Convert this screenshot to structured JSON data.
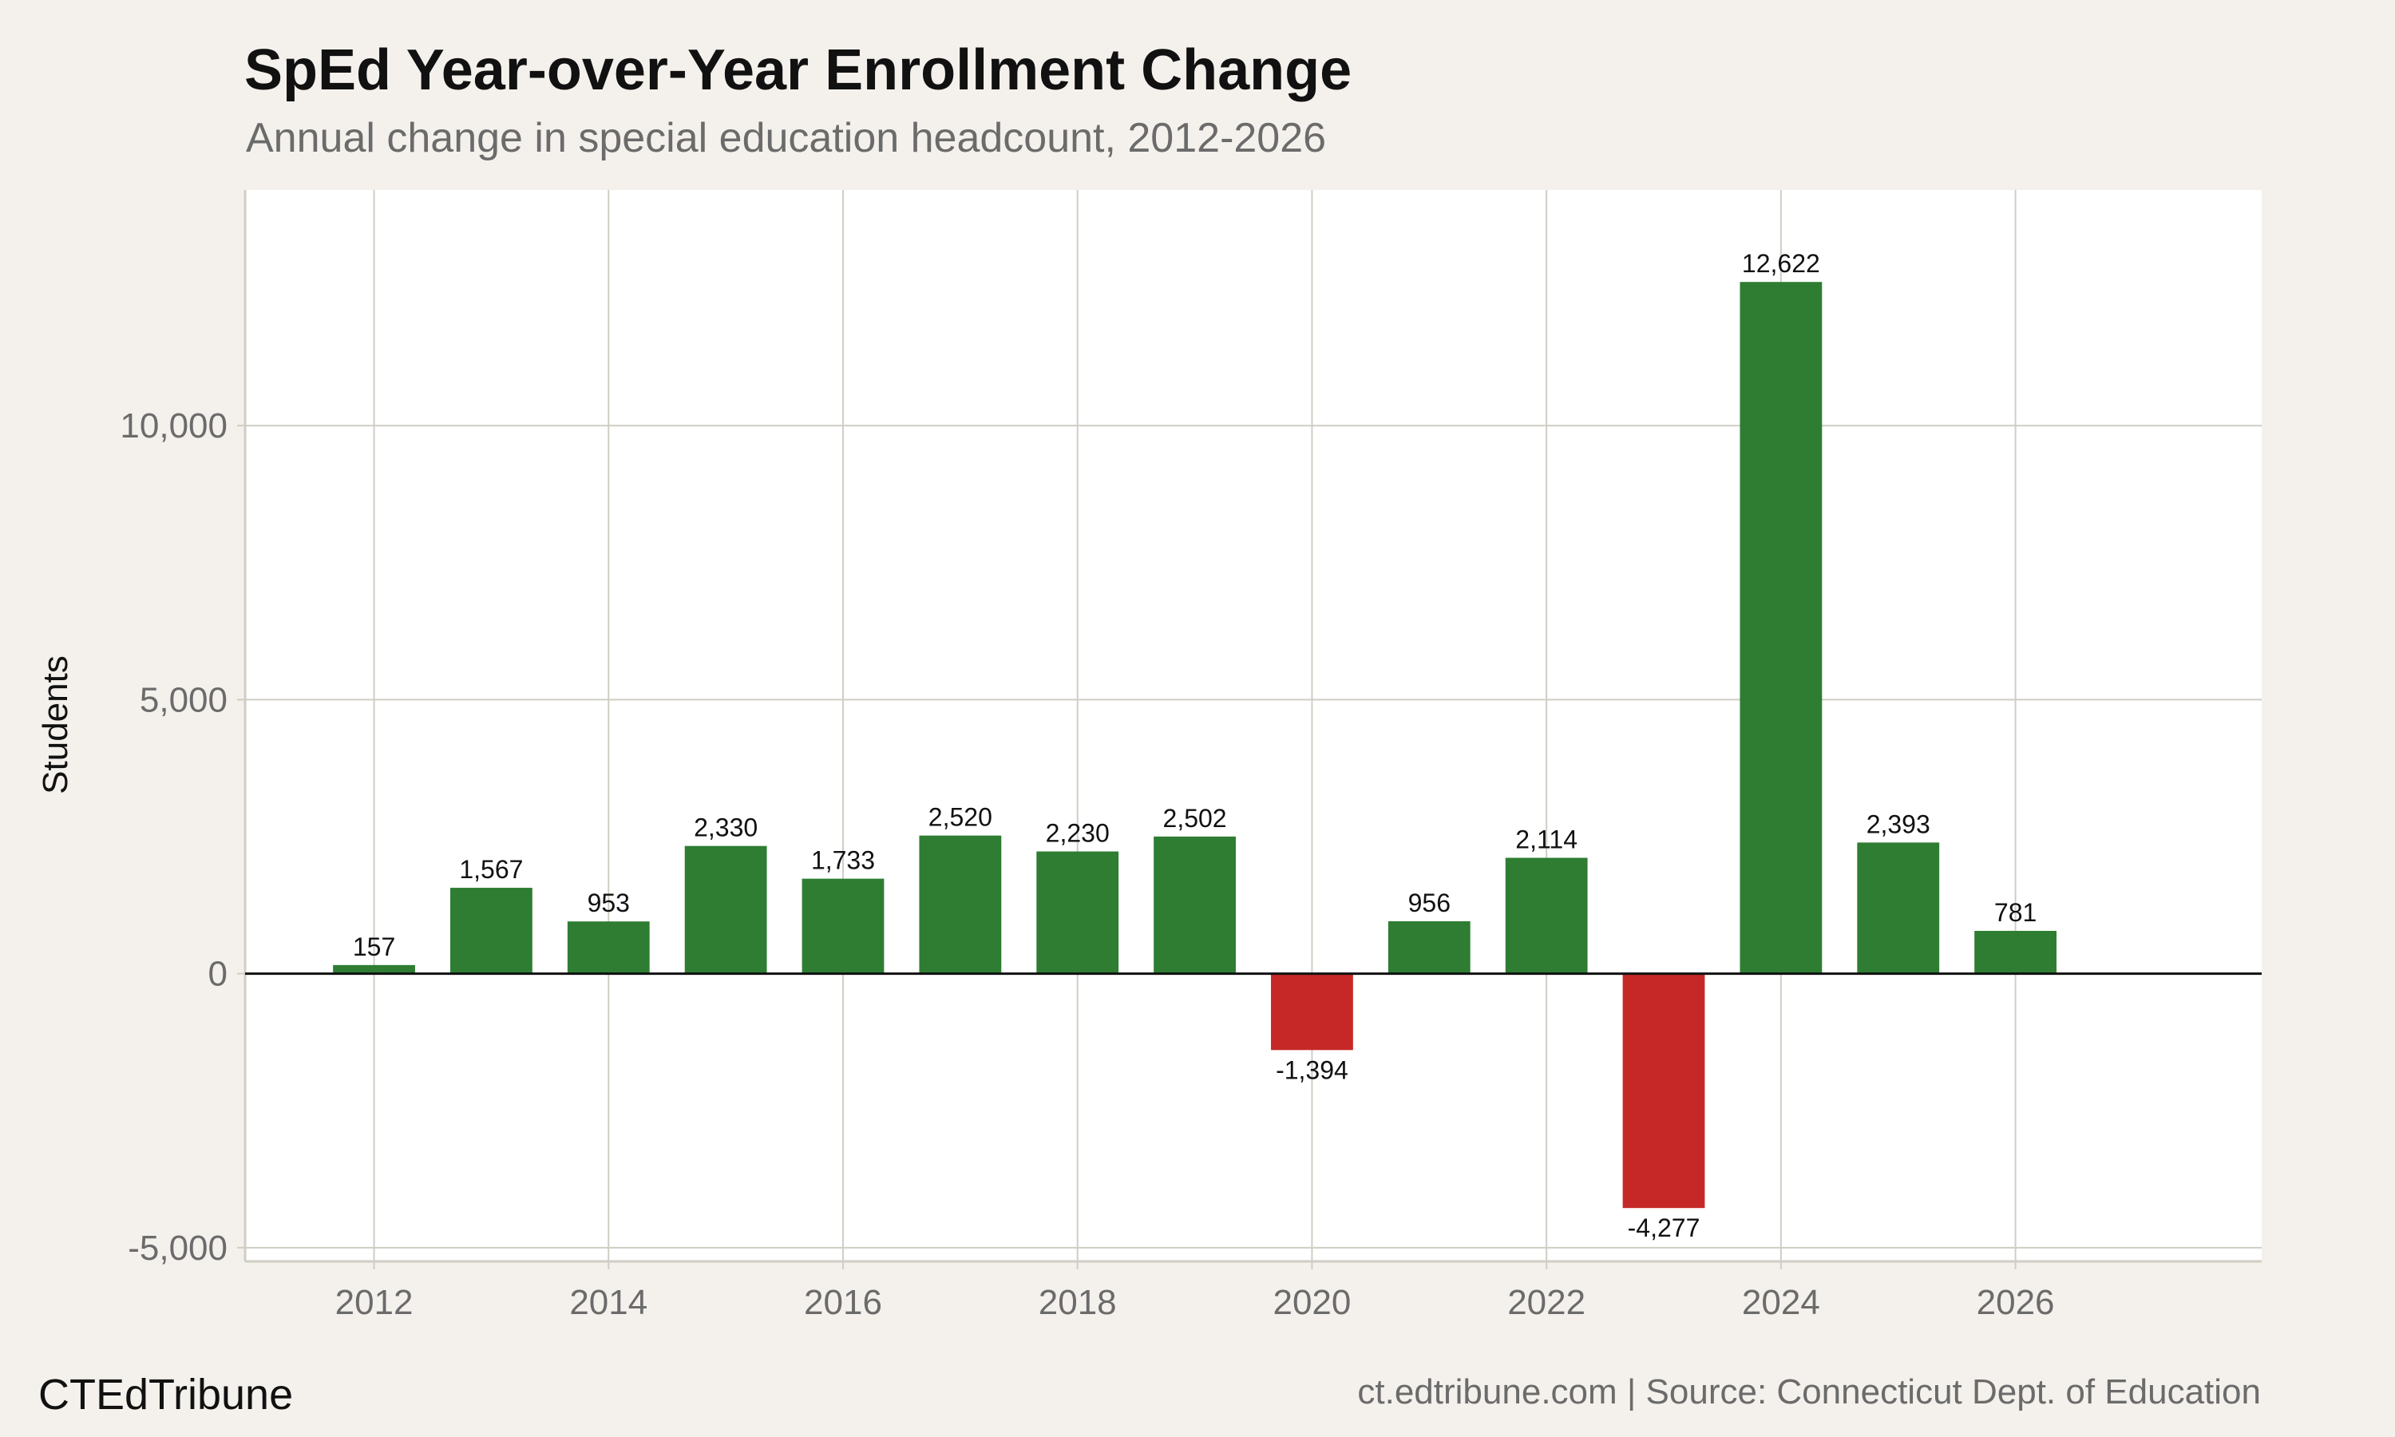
{
  "chart_data": {
    "type": "bar",
    "title": "SpEd Year-over-Year Enrollment Change",
    "subtitle": "Annual change in special education headcount, 2012-2026",
    "xlabel": "",
    "ylabel": "Students",
    "categories": [
      2012,
      2013,
      2014,
      2015,
      2016,
      2017,
      2018,
      2019,
      2020,
      2021,
      2022,
      2023,
      2024,
      2025,
      2026
    ],
    "values": [
      157,
      1567,
      953,
      2330,
      1733,
      2520,
      2230,
      2502,
      -1394,
      956,
      2114,
      -4277,
      12622,
      2393,
      781
    ],
    "data_labels": [
      "157",
      "1,567",
      "953",
      "2,330",
      "1,733",
      "2,520",
      "2,230",
      "2,502",
      "-1,394",
      "956",
      "2,114",
      "-4,277",
      "12,622",
      "2,393",
      "781"
    ],
    "xlim": [
      2010.9,
      2028.1
    ],
    "ylim": [
      -5250,
      14300
    ],
    "x_ticks": [
      2012,
      2014,
      2016,
      2018,
      2020,
      2022,
      2024,
      2026
    ],
    "x_tick_labels": [
      "2012",
      "2014",
      "2016",
      "2018",
      "2020",
      "2022",
      "2024",
      "2026"
    ],
    "y_ticks": [
      -5000,
      0,
      5000,
      10000
    ],
    "y_tick_labels": [
      "-5,000",
      "0",
      "5,000",
      "10,000"
    ],
    "grid": true,
    "legend": "none",
    "colors": {
      "positive": "#2e7d32",
      "negative": "#c62828",
      "background": "#f4f1ec",
      "panel": "#ffffff",
      "grid": "#d0cdc4",
      "zero_line": "#111111"
    }
  },
  "footer": {
    "brand": "CTEdTribune",
    "source": "ct.edtribune.com | Source: Connecticut Dept. of Education"
  }
}
